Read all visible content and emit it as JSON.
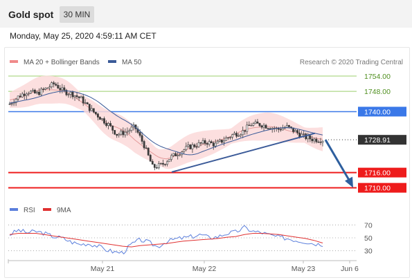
{
  "header": {
    "title": "Gold spot",
    "timeframe": "30 MIN"
  },
  "timestamp": "Monday, May 25, 2020 4:59:11 AM CET",
  "legend": {
    "items": [
      {
        "label": "MA 20 + Bollinger Bands",
        "color": "#f08a8a"
      },
      {
        "label": "MA 50",
        "color": "#3a5a98"
      }
    ],
    "credit": "Research © 2020 Trading Central"
  },
  "rsi_legend": {
    "items": [
      {
        "label": "RSI",
        "color": "#5b7fdc"
      },
      {
        "label": "9MA",
        "color": "#e03030"
      }
    ]
  },
  "colors": {
    "resistance_green": "#9bcf6b",
    "pivot_blue": "#3a78e8",
    "support_red": "#ee1c1c",
    "price_dark": "#333333",
    "arrow": "#2e5f9e",
    "band_fill": "#fbd9d9",
    "candle": "#3a3a3a"
  },
  "chart_data": [
    {
      "type": "candlestick",
      "title": "Gold spot",
      "y_range": [
        1705,
        1760
      ],
      "x_ticks": [
        "May 21",
        "May 22",
        "May 23",
        "Jun 6"
      ],
      "levels": [
        {
          "value": 1754.0,
          "label": "1754.00",
          "kind": "resistance",
          "color": "#9bcf6b"
        },
        {
          "value": 1748.0,
          "label": "1748.00",
          "kind": "resistance",
          "color": "#9bcf6b"
        },
        {
          "value": 1740.0,
          "label": "1740.00",
          "kind": "pivot",
          "color": "#3a78e8"
        },
        {
          "value": 1728.91,
          "label": "1728.91",
          "kind": "last_price",
          "color": "#333333"
        },
        {
          "value": 1716.0,
          "label": "1716.00",
          "kind": "support",
          "color": "#ee1c1c"
        },
        {
          "value": 1710.0,
          "label": "1710.00",
          "kind": "support",
          "color": "#ee1c1c"
        }
      ],
      "close_path": [
        1743,
        1746,
        1748,
        1747,
        1749,
        1751,
        1748,
        1747,
        1745,
        1741,
        1738,
        1735,
        1731,
        1732,
        1734,
        1727,
        1718,
        1719,
        1722,
        1724,
        1726,
        1727,
        1728,
        1727,
        1729,
        1731,
        1732,
        1735,
        1735,
        1734,
        1733,
        1734,
        1732,
        1730,
        1729,
        1728.91
      ],
      "trendline": {
        "from": 1716.2,
        "to": 1731.5
      },
      "forecast": {
        "from": 1728.91,
        "to": 1710.0
      }
    },
    {
      "type": "line",
      "title": "RSI",
      "y_range": [
        20,
        80
      ],
      "y_ticks": [
        70,
        50,
        30
      ],
      "series": [
        {
          "name": "RSI",
          "color": "#5b7fdc",
          "values": [
            55,
            62,
            58,
            60,
            57,
            52,
            50,
            44,
            40,
            41,
            38,
            32,
            28,
            27,
            40,
            47,
            43,
            36,
            44,
            48,
            50,
            52,
            55,
            50,
            52,
            57,
            59,
            66,
            60,
            58,
            54,
            51,
            49,
            46,
            44,
            41,
            40
          ]
        },
        {
          "name": "9MA",
          "color": "#e03030",
          "values": [
            55,
            57,
            57,
            57,
            55,
            53,
            51,
            49,
            47,
            45,
            43,
            41,
            39,
            37,
            36,
            38,
            39,
            40,
            41,
            43,
            45,
            46,
            47,
            48,
            49,
            51,
            52,
            55,
            57,
            57,
            56,
            55,
            53,
            51,
            49,
            46,
            42
          ]
        }
      ]
    }
  ]
}
